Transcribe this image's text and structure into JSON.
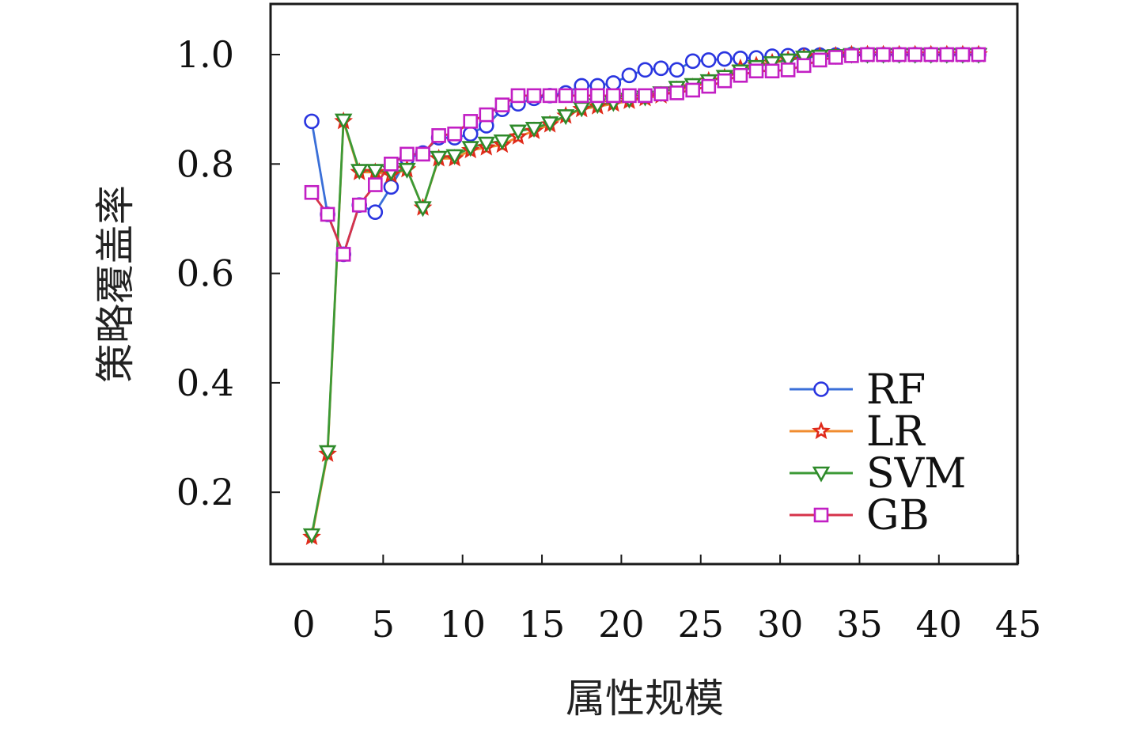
{
  "chart_data": {
    "type": "line",
    "title": "",
    "xlabel": "属性规模",
    "ylabel": "策略覆盖率",
    "xlim": [
      -2,
      45
    ],
    "ylim": [
      0.1,
      1.1
    ],
    "xticks": [
      0,
      5,
      10,
      15,
      20,
      25,
      30,
      35,
      40,
      45
    ],
    "yticks": [
      0.2,
      0.4,
      0.6,
      0.8,
      1.0
    ],
    "xtick_labels": [
      "0",
      "5",
      "10",
      "15",
      "20",
      "25",
      "30",
      "35",
      "40",
      "45"
    ],
    "ytick_labels": [
      "0.2",
      "0.4",
      "0.6",
      "0.8",
      "1.0"
    ],
    "grid": false,
    "legend_position": "bottom-right",
    "series": [
      {
        "name": "RF",
        "color": "#3a6fd8",
        "marker_color": "#2a35e0",
        "marker": "circle",
        "x": [
          0.5,
          1.5,
          2.5,
          3.5,
          4.5,
          5.5,
          6.5,
          7.5,
          8.5,
          9.5,
          10.5,
          11.5,
          12.5,
          13.5,
          14.5,
          15.5,
          16.5,
          17.5,
          18.5,
          19.5,
          20.5,
          21.5,
          22.5,
          23.5,
          24.5,
          25.5,
          26.5,
          27.5,
          28.5,
          29.5,
          30.5,
          31.5,
          32.5,
          33.5,
          34.5,
          35.5,
          36.5,
          37.5,
          38.5,
          39.5,
          40.5,
          41.5,
          42.5
        ],
        "y": [
          0.878,
          0.708,
          0.635,
          0.725,
          0.712,
          0.758,
          0.81,
          0.82,
          0.848,
          0.848,
          0.855,
          0.87,
          0.9,
          0.91,
          0.92,
          0.925,
          0.93,
          0.943,
          0.943,
          0.948,
          0.962,
          0.972,
          0.975,
          0.972,
          0.988,
          0.99,
          0.992,
          0.993,
          0.994,
          0.997,
          0.998,
          0.999,
          0.999,
          0.999,
          1.0,
          1.0,
          1.0,
          1.0,
          1.0,
          1.0,
          1.0,
          1.0,
          1.0
        ]
      },
      {
        "name": "LR",
        "color": "#f08c30",
        "marker_color": "#e02a1a",
        "marker": "star",
        "x": [
          0.5,
          1.5,
          2.5,
          3.5,
          4.5,
          5.5,
          6.5,
          7.5,
          8.5,
          9.5,
          10.5,
          11.5,
          12.5,
          13.5,
          14.5,
          15.5,
          16.5,
          17.5,
          18.5,
          19.5,
          20.5,
          21.5,
          22.5,
          23.5,
          24.5,
          25.5,
          26.5,
          27.5,
          28.5,
          29.5,
          30.5,
          31.5,
          32.5,
          33.5,
          34.5,
          35.5,
          36.5,
          37.5,
          38.5,
          39.5,
          40.5,
          41.5,
          42.5
        ],
        "y": [
          0.118,
          0.27,
          0.878,
          0.785,
          0.785,
          0.78,
          0.79,
          0.72,
          0.81,
          0.81,
          0.825,
          0.83,
          0.835,
          0.85,
          0.86,
          0.872,
          0.888,
          0.9,
          0.905,
          0.91,
          0.915,
          0.92,
          0.925,
          0.935,
          0.94,
          0.952,
          0.958,
          0.975,
          0.98,
          0.985,
          0.99,
          0.995,
          0.997,
          0.998,
          1.0,
          1.0,
          1.0,
          1.0,
          1.0,
          1.0,
          1.0,
          1.0,
          1.0
        ]
      },
      {
        "name": "SVM",
        "color": "#3c9a36",
        "marker_color": "#2e8a2a",
        "marker": "triangle-down",
        "x": [
          0.5,
          1.5,
          2.5,
          3.5,
          4.5,
          5.5,
          6.5,
          7.5,
          8.5,
          9.5,
          10.5,
          11.5,
          12.5,
          13.5,
          14.5,
          15.5,
          16.5,
          17.5,
          18.5,
          19.5,
          20.5,
          21.5,
          22.5,
          23.5,
          24.5,
          25.5,
          26.5,
          27.5,
          28.5,
          29.5,
          30.5,
          31.5,
          32.5,
          33.5,
          34.5,
          35.5,
          36.5,
          37.5,
          38.5,
          39.5,
          40.5,
          41.5,
          42.5
        ],
        "y": [
          0.122,
          0.274,
          0.88,
          0.788,
          0.788,
          0.785,
          0.79,
          0.72,
          0.812,
          0.815,
          0.83,
          0.838,
          0.842,
          0.86,
          0.865,
          0.875,
          0.888,
          0.902,
          0.908,
          0.912,
          0.918,
          0.922,
          0.93,
          0.94,
          0.945,
          0.952,
          0.96,
          0.97,
          0.978,
          0.985,
          0.99,
          0.995,
          0.997,
          0.998,
          1.0,
          1.0,
          1.0,
          1.0,
          1.0,
          1.0,
          1.0,
          1.0,
          1.0
        ]
      },
      {
        "name": "GB",
        "color": "#d6334a",
        "marker_color": "#c21fc4",
        "marker": "square",
        "x": [
          0.5,
          1.5,
          2.5,
          3.5,
          4.5,
          5.5,
          6.5,
          7.5,
          8.5,
          9.5,
          10.5,
          11.5,
          12.5,
          13.5,
          14.5,
          15.5,
          16.5,
          17.5,
          18.5,
          19.5,
          20.5,
          21.5,
          22.5,
          23.5,
          24.5,
          25.5,
          26.5,
          27.5,
          28.5,
          29.5,
          30.5,
          31.5,
          32.5,
          33.5,
          34.5,
          35.5,
          36.5,
          37.5,
          38.5,
          39.5,
          40.5,
          41.5,
          42.5
        ],
        "y": [
          0.748,
          0.708,
          0.635,
          0.725,
          0.762,
          0.8,
          0.818,
          0.818,
          0.852,
          0.855,
          0.878,
          0.89,
          0.908,
          0.925,
          0.925,
          0.925,
          0.925,
          0.925,
          0.925,
          0.925,
          0.925,
          0.925,
          0.928,
          0.93,
          0.935,
          0.942,
          0.952,
          0.962,
          0.97,
          0.97,
          0.972,
          0.98,
          0.99,
          0.995,
          0.998,
          1.0,
          1.0,
          1.0,
          1.0,
          1.0,
          1.0,
          1.0,
          1.0
        ]
      }
    ]
  }
}
